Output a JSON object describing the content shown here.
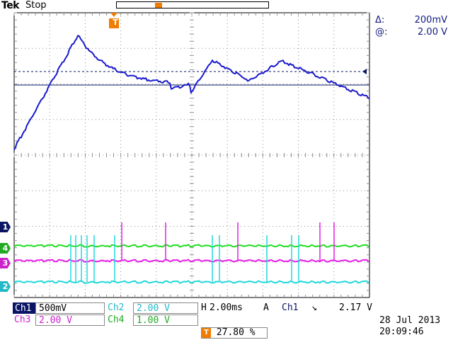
{
  "header": {
    "brand_bold": "Tek",
    "run_state": "Stop"
  },
  "cursor_readout": {
    "delta_label": "Δ:",
    "delta_value": "200mV",
    "at_label": "@:",
    "at_value": "2.00 V"
  },
  "colors": {
    "ch1": "#1a1acc",
    "ch2": "#22d8dc",
    "ch3": "#e61ee6",
    "ch4": "#22dd22",
    "grid": "#909090",
    "trigger": "#f07c00",
    "ch1_label_bg": "#0a1464"
  },
  "channel_markers": [
    {
      "label": "1",
      "color": "#0a1464"
    },
    {
      "label": "4",
      "color": "#22aa22"
    },
    {
      "label": "3",
      "color": "#cc22cc"
    },
    {
      "label": "2",
      "color": "#22b8c8"
    }
  ],
  "trigger_markers": {
    "top_label": "T",
    "position_label": "T"
  },
  "status": {
    "ch1_label": "Ch1",
    "ch1_scale": "500mV",
    "ch2_label": "Ch2",
    "ch2_scale": "2.00 V",
    "horizontal_label": "H",
    "horizontal_scale": "2.00ms",
    "acq_mode": "A",
    "trigger_source": "Ch1",
    "trigger_slope": "↘",
    "trigger_level": "2.17 V",
    "ch3_label": "Ch3",
    "ch3_scale": "2.00 V",
    "ch4_label": "Ch4",
    "ch4_scale": "1.00 V",
    "trigger_position": "27.80 %",
    "date": "28 Jul  2013",
    "time": "20:09:46"
  }
}
